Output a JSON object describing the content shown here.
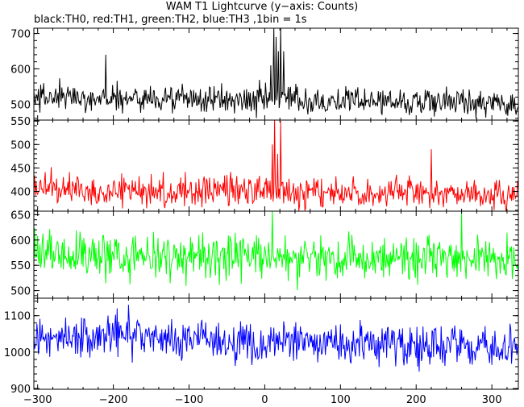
{
  "chart_data": {
    "type": "line",
    "title": "WAM T1 Lightcurve (y−axis: Counts)",
    "subtitle": "black:TH0, red:TH1, green:TH2, blue:TH3 ,1bin = 1s",
    "xlim": [
      -305,
      335
    ],
    "x_ticks": [
      -300,
      -200,
      -100,
      0,
      100,
      200,
      300
    ],
    "x_tick_labels": [
      "−300",
      "−200",
      "−100",
      "0",
      "100",
      "200",
      "300"
    ],
    "x_step_s": 1,
    "panels": [
      {
        "name": "TH0",
        "color": "#000000",
        "ylim": [
          455,
          715
        ],
        "y_ticks": [
          500,
          600,
          700
        ],
        "baseline": [
          [
            -305,
            520
          ],
          [
            0,
            512
          ],
          [
            335,
            505
          ]
        ],
        "noise": 20,
        "features": [
          {
            "x": -210,
            "value": 640
          },
          {
            "x": 8,
            "value": 610
          },
          {
            "x": 12,
            "value": 720
          },
          {
            "x": 15,
            "value": 690
          },
          {
            "x": 18,
            "value": 650
          },
          {
            "x": 21,
            "value": 720
          },
          {
            "x": 25,
            "value": 650
          }
        ]
      },
      {
        "name": "TH1",
        "color": "#ff0000",
        "ylim": [
          358,
          552
        ],
        "y_ticks": [
          400,
          450,
          500,
          550
        ],
        "baseline": [
          [
            -305,
            405
          ],
          [
            0,
            400
          ],
          [
            335,
            392
          ]
        ],
        "noise": 17,
        "features": [
          {
            "x": 10,
            "value": 500
          },
          {
            "x": 13,
            "value": 555
          },
          {
            "x": 17,
            "value": 480
          },
          {
            "x": 21,
            "value": 550
          },
          {
            "x": 220,
            "value": 490
          }
        ]
      },
      {
        "name": "TH2",
        "color": "#00ff00",
        "ylim": [
          485,
          657
        ],
        "y_ticks": [
          500,
          550,
          600,
          650
        ],
        "baseline": [
          [
            -305,
            572
          ],
          [
            0,
            565
          ],
          [
            335,
            560
          ]
        ],
        "noise": 22,
        "features": [
          {
            "x": 10,
            "value": 660
          },
          {
            "x": 260,
            "value": 655
          }
        ]
      },
      {
        "name": "TH3",
        "color": "#0000ff",
        "ylim": [
          898,
          1148
        ],
        "y_ticks": [
          900,
          1000,
          1100
        ],
        "baseline": [
          [
            -305,
            1035
          ],
          [
            -200,
            1045
          ],
          [
            0,
            1025
          ],
          [
            335,
            1015
          ]
        ],
        "noise": 28,
        "features": [
          {
            "x": -195,
            "value": 1120
          },
          {
            "x": -180,
            "value": 1130
          }
        ]
      }
    ]
  }
}
